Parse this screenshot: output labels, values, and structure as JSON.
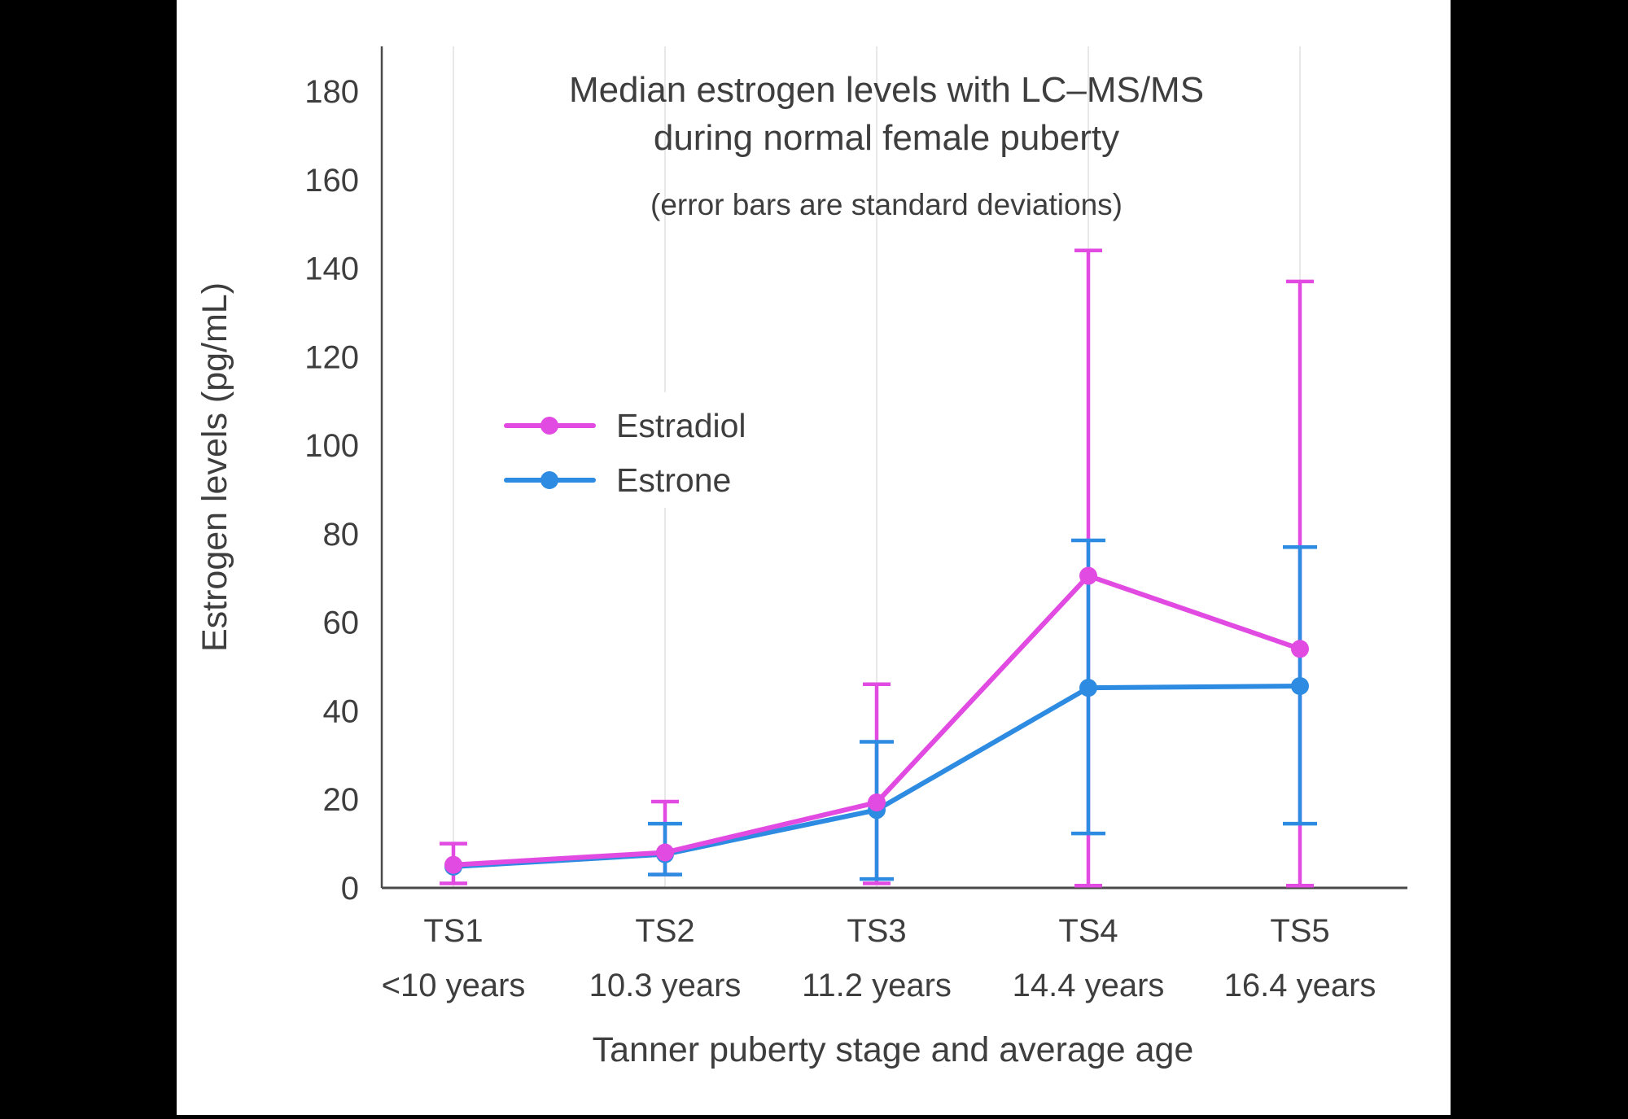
{
  "colors": {
    "background": "#000000",
    "panel": "#ffffff",
    "axis": "#4a4a4a",
    "grid": "#e8e8e8",
    "text": "#3e3e3e",
    "subtitle_text": "#555555"
  },
  "chart_data": {
    "type": "line",
    "title": "Median estrogen levels with LC–MS/MS during normal female puberty",
    "title_line1": "Median estrogen levels with LC–MS/MS",
    "title_line2": "during normal female puberty",
    "subtitle": "(error bars are standard deviations)",
    "xlabel": "Tanner puberty stage and average age",
    "ylabel": "Estrogen levels (pg/mL)",
    "categories": [
      "TS1",
      "TS2",
      "TS3",
      "TS4",
      "TS5"
    ],
    "category_ages": [
      "<10 years",
      "10.3 years",
      "11.2 years",
      "14.4 years",
      "16.4 years"
    ],
    "y_ticks": [
      0,
      20,
      40,
      60,
      80,
      100,
      120,
      140,
      160,
      180
    ],
    "ylim": [
      0,
      190
    ],
    "grid": "vertical-only",
    "legend_position": "inside-upper-left",
    "error_bar_meaning": "standard deviations",
    "series": [
      {
        "name": "Estradiol",
        "color": "#E14BE1",
        "values": [
          5.2,
          8,
          19.3,
          70.5,
          54
        ],
        "err_low": [
          1,
          3,
          1,
          0.5,
          0.5
        ],
        "err_high": [
          10,
          19.5,
          46,
          144,
          137
        ]
      },
      {
        "name": "Estrone",
        "color": "#2E8BE2",
        "values": [
          4.8,
          7.6,
          17.6,
          45.2,
          45.6
        ],
        "err_low": [
          null,
          3,
          2,
          12.3,
          14.5
        ],
        "err_high": [
          null,
          14.5,
          33,
          78.5,
          77
        ]
      }
    ]
  }
}
